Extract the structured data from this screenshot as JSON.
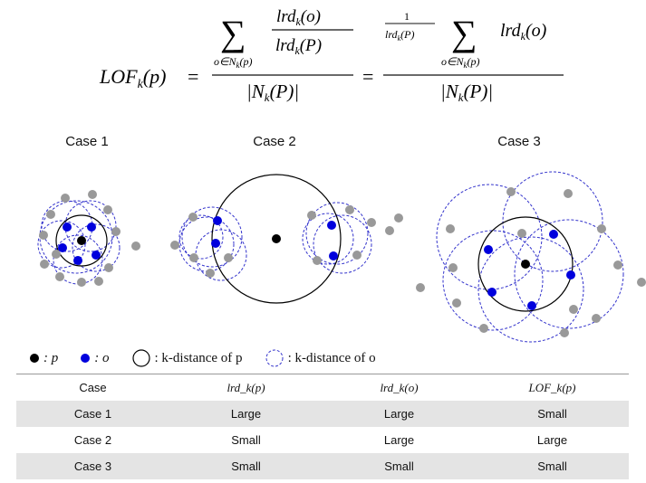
{
  "formula": {
    "lhs": "LOF",
    "lhs_sub": "k",
    "lhs_arg": "(p)",
    "sum": "∑",
    "sum_sub": "o∈N",
    "sum_sub_k": "k",
    "sum_sub_p": "(p)",
    "lrd": "lrd",
    "lrd_sub": "k",
    "num_arg": "(o)",
    "den_arg": "(P)",
    "one": "1",
    "Nk": "|N",
    "Nk_sub": "k",
    "Nk_arg": "(P)|",
    "eq": "="
  },
  "cases": {
    "case1": "Case 1",
    "case2": "Case 2",
    "case3": "Case 3"
  },
  "legend": {
    "p_text": ": p",
    "o_text": ": o",
    "kdist_p": ": k-distance of p",
    "kdist_o": ": k-distance of o"
  },
  "colors": {
    "blue_point": "#0000dd",
    "gray_point": "#999999",
    "dashed_circle": "#3333cc",
    "row_shade": "#e4e4e4"
  },
  "table": {
    "headers": [
      "Case",
      "lrd_k(p)",
      "lrd_k(o)",
      "LOF_k(p)"
    ],
    "rows": [
      [
        "Case 1",
        "Large",
        "Large",
        "Small"
      ],
      [
        "Case 2",
        "Small",
        "Large",
        "Large"
      ],
      [
        "Case 3",
        "Small",
        "Small",
        "Small"
      ]
    ]
  }
}
